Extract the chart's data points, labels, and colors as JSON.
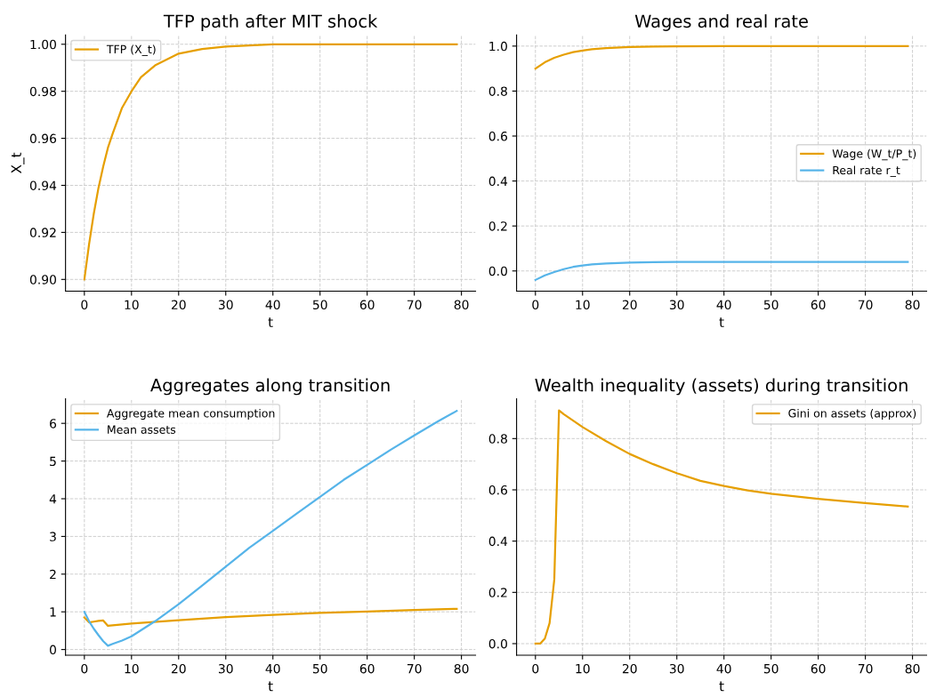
{
  "chart_data": [
    {
      "type": "line",
      "title": "TFP path after MIT shock",
      "xlabel": "t",
      "ylabel": "X_t",
      "xlim": [
        -4,
        83
      ],
      "xticks": [
        0,
        10,
        20,
        30,
        40,
        50,
        60,
        70,
        80
      ],
      "ylim": [
        0.895,
        1.004
      ],
      "yticks": [
        {
          "value": 0.9,
          "label": "0.90"
        },
        {
          "value": 0.92,
          "label": "0.92"
        },
        {
          "value": 0.94,
          "label": "0.94"
        },
        {
          "value": 0.96,
          "label": "0.96"
        },
        {
          "value": 0.98,
          "label": "0.98"
        },
        {
          "value": 1.0,
          "label": "1.00"
        }
      ],
      "grid": true,
      "legend": "top left",
      "series": [
        {
          "name": "TFP (X_t)",
          "color": "#e69f00",
          "x": [
            0,
            1,
            2,
            3,
            4,
            5,
            6,
            8,
            10,
            12,
            15,
            20,
            25,
            30,
            40,
            50,
            60,
            70,
            79
          ],
          "values": [
            0.9,
            0.915,
            0.928,
            0.939,
            0.948,
            0.956,
            0.962,
            0.973,
            0.98,
            0.986,
            0.991,
            0.996,
            0.998,
            0.999,
            1.0,
            1.0,
            1.0,
            1.0,
            1.0
          ]
        }
      ]
    },
    {
      "type": "line",
      "title": "Wages and real rate",
      "xlabel": "t",
      "xlim": [
        -4,
        83
      ],
      "xticks": [
        0,
        10,
        20,
        30,
        40,
        50,
        60,
        70,
        80
      ],
      "ylim": [
        -0.09,
        1.05
      ],
      "yticks": [
        {
          "value": 0,
          "label": "0.0"
        },
        {
          "value": 0.2,
          "label": "0.2"
        },
        {
          "value": 0.4,
          "label": "0.4"
        },
        {
          "value": 0.6,
          "label": "0.6"
        },
        {
          "value": 0.8,
          "label": "0.8"
        },
        {
          "value": 1.0,
          "label": "1.0"
        }
      ],
      "grid": true,
      "legend": "center right",
      "series": [
        {
          "name": "Wage (W_t/P_t)",
          "color": "#e69f00",
          "x": [
            0,
            2,
            4,
            6,
            8,
            10,
            12,
            15,
            20,
            25,
            30,
            40,
            50,
            60,
            70,
            79
          ],
          "values": [
            0.9,
            0.928,
            0.948,
            0.962,
            0.973,
            0.98,
            0.986,
            0.991,
            0.996,
            0.998,
            0.999,
            1.0,
            1.0,
            1.0,
            1.0,
            1.0
          ]
        },
        {
          "name": "Real rate r_t",
          "color": "#56b4e9",
          "x": [
            0,
            2,
            4,
            6,
            8,
            10,
            12,
            15,
            20,
            25,
            30,
            40,
            50,
            60,
            70,
            79
          ],
          "values": [
            -0.04,
            -0.02,
            -0.005,
            0.008,
            0.018,
            0.024,
            0.029,
            0.033,
            0.037,
            0.039,
            0.04,
            0.04,
            0.04,
            0.04,
            0.04,
            0.04
          ]
        }
      ]
    },
    {
      "type": "line",
      "title": "Aggregates along transition",
      "xlabel": "t",
      "xlim": [
        -4,
        83
      ],
      "xticks": [
        0,
        10,
        20,
        30,
        40,
        50,
        60,
        70,
        80
      ],
      "ylim": [
        -0.15,
        6.65
      ],
      "yticks": [
        0,
        1,
        2,
        3,
        4,
        5,
        6
      ],
      "grid": true,
      "legend": "top left",
      "series": [
        {
          "name": "Aggregate mean consumption",
          "color": "#e69f00",
          "x": [
            0,
            1,
            2,
            3,
            4,
            5,
            6,
            10,
            20,
            30,
            40,
            50,
            60,
            70,
            79
          ],
          "values": [
            0.85,
            0.72,
            0.74,
            0.76,
            0.77,
            0.63,
            0.64,
            0.69,
            0.78,
            0.86,
            0.92,
            0.97,
            1.01,
            1.05,
            1.08
          ]
        },
        {
          "name": "Mean assets",
          "color": "#56b4e9",
          "x": [
            0,
            1,
            2,
            3,
            4,
            5,
            6,
            8,
            10,
            15,
            20,
            25,
            30,
            35,
            40,
            45,
            50,
            55,
            60,
            65,
            70,
            75,
            79
          ],
          "values": [
            1.0,
            0.75,
            0.55,
            0.38,
            0.22,
            0.1,
            0.15,
            0.24,
            0.35,
            0.75,
            1.2,
            1.7,
            2.2,
            2.7,
            3.15,
            3.6,
            4.05,
            4.5,
            4.9,
            5.3,
            5.68,
            6.05,
            6.33
          ]
        }
      ]
    },
    {
      "type": "line",
      "title": "Wealth inequality (assets) during transition",
      "xlabel": "t",
      "xlim": [
        -4,
        83
      ],
      "xticks": [
        0,
        10,
        20,
        30,
        40,
        50,
        60,
        70,
        80
      ],
      "ylim": [
        -0.045,
        0.955
      ],
      "yticks": [
        {
          "value": 0,
          "label": "0.0"
        },
        {
          "value": 0.2,
          "label": "0.2"
        },
        {
          "value": 0.4,
          "label": "0.4"
        },
        {
          "value": 0.6,
          "label": "0.6"
        },
        {
          "value": 0.8,
          "label": "0.8"
        }
      ],
      "grid": true,
      "legend": "top right",
      "series": [
        {
          "name": "Gini on assets (approx)",
          "color": "#e69f00",
          "x": [
            0,
            1,
            2,
            3,
            4,
            5,
            6,
            8,
            10,
            15,
            20,
            25,
            30,
            35,
            40,
            45,
            50,
            60,
            70,
            79
          ],
          "values": [
            0.0,
            0.0,
            0.02,
            0.08,
            0.25,
            0.91,
            0.895,
            0.87,
            0.845,
            0.79,
            0.74,
            0.7,
            0.665,
            0.635,
            0.615,
            0.598,
            0.585,
            0.565,
            0.548,
            0.535
          ]
        }
      ]
    }
  ]
}
